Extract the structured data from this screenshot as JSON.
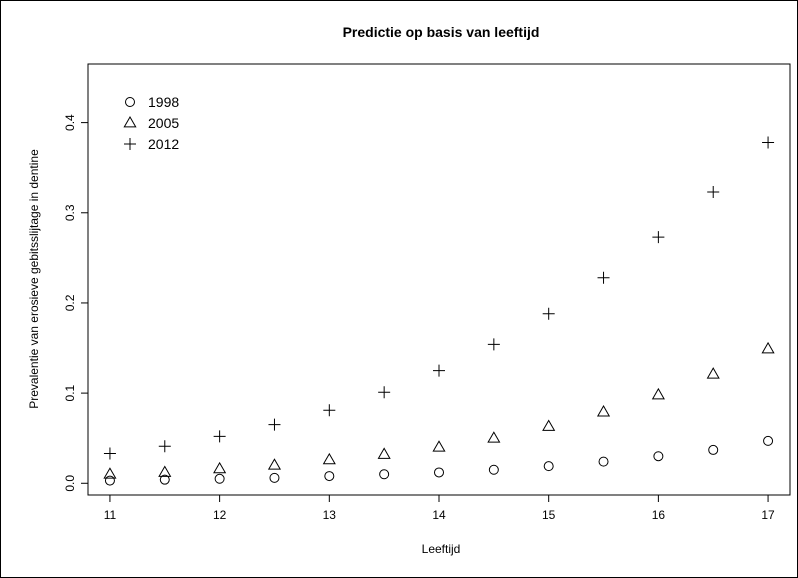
{
  "chart_data": {
    "type": "scatter",
    "title": "Predictie op basis van leeftijd",
    "xlabel": "Leeftijd",
    "ylabel": "Prevalentie van erosieve gebitsslijtage in dentine",
    "xlim": [
      10.8,
      17.2
    ],
    "ylim": [
      -0.013,
      0.465
    ],
    "x_ticks": [
      11,
      12,
      13,
      14,
      15,
      16,
      17
    ],
    "x_tick_labels": [
      "11",
      "12",
      "13",
      "14",
      "15",
      "16",
      "17"
    ],
    "y_ticks": [
      0.0,
      0.1,
      0.2,
      0.3,
      0.4
    ],
    "y_tick_labels": [
      "0.0",
      "0.1",
      "0.2",
      "0.3",
      "0.4"
    ],
    "grid": false,
    "legend_position": "top-left",
    "x": [
      11,
      11.5,
      12,
      12.5,
      13,
      13.5,
      14,
      14.5,
      15,
      15.5,
      16,
      16.5,
      17
    ],
    "series": [
      {
        "name": "1998",
        "marker": "circle",
        "values": [
          0.003,
          0.004,
          0.005,
          0.006,
          0.008,
          0.01,
          0.012,
          0.015,
          0.019,
          0.024,
          0.03,
          0.037,
          0.047
        ]
      },
      {
        "name": "2005",
        "marker": "triangle",
        "values": [
          0.01,
          0.012,
          0.016,
          0.02,
          0.026,
          0.032,
          0.04,
          0.05,
          0.063,
          0.079,
          0.098,
          0.121,
          0.149
        ]
      },
      {
        "name": "2012",
        "marker": "plus",
        "values": [
          0.033,
          0.041,
          0.052,
          0.065,
          0.081,
          0.101,
          0.125,
          0.154,
          0.188,
          0.228,
          0.273,
          0.323,
          0.378
        ]
      }
    ]
  }
}
